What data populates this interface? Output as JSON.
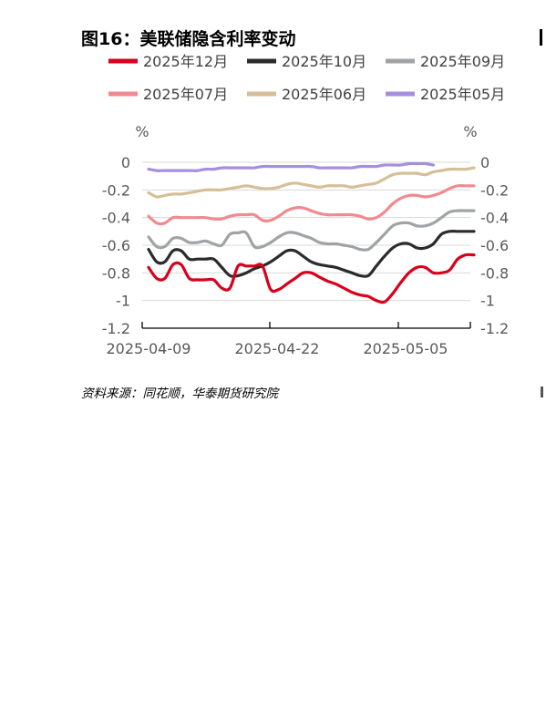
{
  "figure_title": "图16：美联储隐含利率变动",
  "source": "资料来源：同花顺，华泰期货研究院",
  "chart_data": {
    "type": "line",
    "title": "",
    "y_unit_left": "%",
    "y_unit_right": "%",
    "ylim": [
      -1.2,
      0
    ],
    "yticks": [
      0,
      -0.2,
      -0.4,
      -0.6,
      -0.8,
      -1,
      -1.2
    ],
    "ytick_labels": [
      "0",
      "-0.2",
      "-0.4",
      "-0.6",
      "-0.8",
      "-1",
      "-1.2"
    ],
    "x_tick_labels": [
      "2025-04-09",
      "2025-04-22",
      "2025-05-05"
    ],
    "legend_position": "top",
    "series": [
      {
        "name": "2025年12月",
        "color": "#d9001b",
        "values": [
          -0.76,
          -0.84,
          -0.84,
          -0.74,
          -0.74,
          -0.84,
          -0.85,
          -0.85,
          -0.85,
          -0.91,
          -0.91,
          -0.75,
          -0.75,
          -0.75,
          -0.75,
          -0.92,
          -0.92,
          -0.88,
          -0.84,
          -0.8,
          -0.8,
          -0.83,
          -0.86,
          -0.88,
          -0.91,
          -0.94,
          -0.96,
          -0.97,
          -1.0,
          -1.01,
          -0.95,
          -0.87,
          -0.8,
          -0.76,
          -0.76,
          -0.8,
          -0.8,
          -0.78,
          -0.7,
          -0.67,
          -0.67
        ]
      },
      {
        "name": "2025年10月",
        "color": "#2b2b2b",
        "values": [
          -0.63,
          -0.72,
          -0.72,
          -0.64,
          -0.64,
          -0.7,
          -0.7,
          -0.7,
          -0.7,
          -0.76,
          -0.82,
          -0.82,
          -0.8,
          -0.77,
          -0.75,
          -0.72,
          -0.68,
          -0.64,
          -0.64,
          -0.68,
          -0.72,
          -0.74,
          -0.75,
          -0.76,
          -0.78,
          -0.8,
          -0.82,
          -0.82,
          -0.75,
          -0.68,
          -0.62,
          -0.59,
          -0.59,
          -0.62,
          -0.62,
          -0.59,
          -0.52,
          -0.5,
          -0.5,
          -0.5,
          -0.5
        ]
      },
      {
        "name": "2025年09月",
        "color": "#a0a3a6",
        "values": [
          -0.54,
          -0.61,
          -0.61,
          -0.55,
          -0.55,
          -0.58,
          -0.58,
          -0.57,
          -0.59,
          -0.6,
          -0.52,
          -0.51,
          -0.51,
          -0.61,
          -0.61,
          -0.58,
          -0.54,
          -0.51,
          -0.51,
          -0.53,
          -0.55,
          -0.58,
          -0.59,
          -0.59,
          -0.6,
          -0.61,
          -0.63,
          -0.63,
          -0.58,
          -0.52,
          -0.46,
          -0.44,
          -0.44,
          -0.46,
          -0.46,
          -0.44,
          -0.4,
          -0.36,
          -0.35,
          -0.35,
          -0.35
        ]
      },
      {
        "name": "2025年07月",
        "color": "#f08a8f",
        "values": [
          -0.39,
          -0.44,
          -0.44,
          -0.4,
          -0.4,
          -0.4,
          -0.4,
          -0.4,
          -0.41,
          -0.41,
          -0.39,
          -0.38,
          -0.38,
          -0.38,
          -0.42,
          -0.42,
          -0.39,
          -0.35,
          -0.33,
          -0.33,
          -0.35,
          -0.37,
          -0.38,
          -0.38,
          -0.38,
          -0.38,
          -0.39,
          -0.41,
          -0.4,
          -0.36,
          -0.3,
          -0.26,
          -0.24,
          -0.24,
          -0.25,
          -0.24,
          -0.22,
          -0.19,
          -0.17,
          -0.17,
          -0.17
        ]
      },
      {
        "name": "2025年06月",
        "color": "#d4bf98",
        "values": [
          -0.22,
          -0.25,
          -0.24,
          -0.23,
          -0.23,
          -0.22,
          -0.21,
          -0.2,
          -0.2,
          -0.2,
          -0.19,
          -0.18,
          -0.17,
          -0.18,
          -0.19,
          -0.19,
          -0.18,
          -0.16,
          -0.15,
          -0.16,
          -0.17,
          -0.18,
          -0.17,
          -0.17,
          -0.17,
          -0.18,
          -0.17,
          -0.16,
          -0.15,
          -0.12,
          -0.09,
          -0.08,
          -0.08,
          -0.08,
          -0.09,
          -0.07,
          -0.06,
          -0.05,
          -0.05,
          -0.05,
          -0.04
        ]
      },
      {
        "name": "2025年05月",
        "color": "#a58fde",
        "values": [
          -0.05,
          -0.06,
          -0.06,
          -0.06,
          -0.06,
          -0.06,
          -0.06,
          -0.05,
          -0.05,
          -0.04,
          -0.04,
          -0.04,
          -0.04,
          -0.04,
          -0.03,
          -0.03,
          -0.03,
          -0.03,
          -0.03,
          -0.03,
          -0.03,
          -0.04,
          -0.04,
          -0.04,
          -0.04,
          -0.04,
          -0.03,
          -0.03,
          -0.03,
          -0.02,
          -0.02,
          -0.02,
          -0.01,
          -0.01,
          -0.01,
          -0.02,
          null,
          null,
          null,
          null,
          null
        ]
      }
    ]
  }
}
